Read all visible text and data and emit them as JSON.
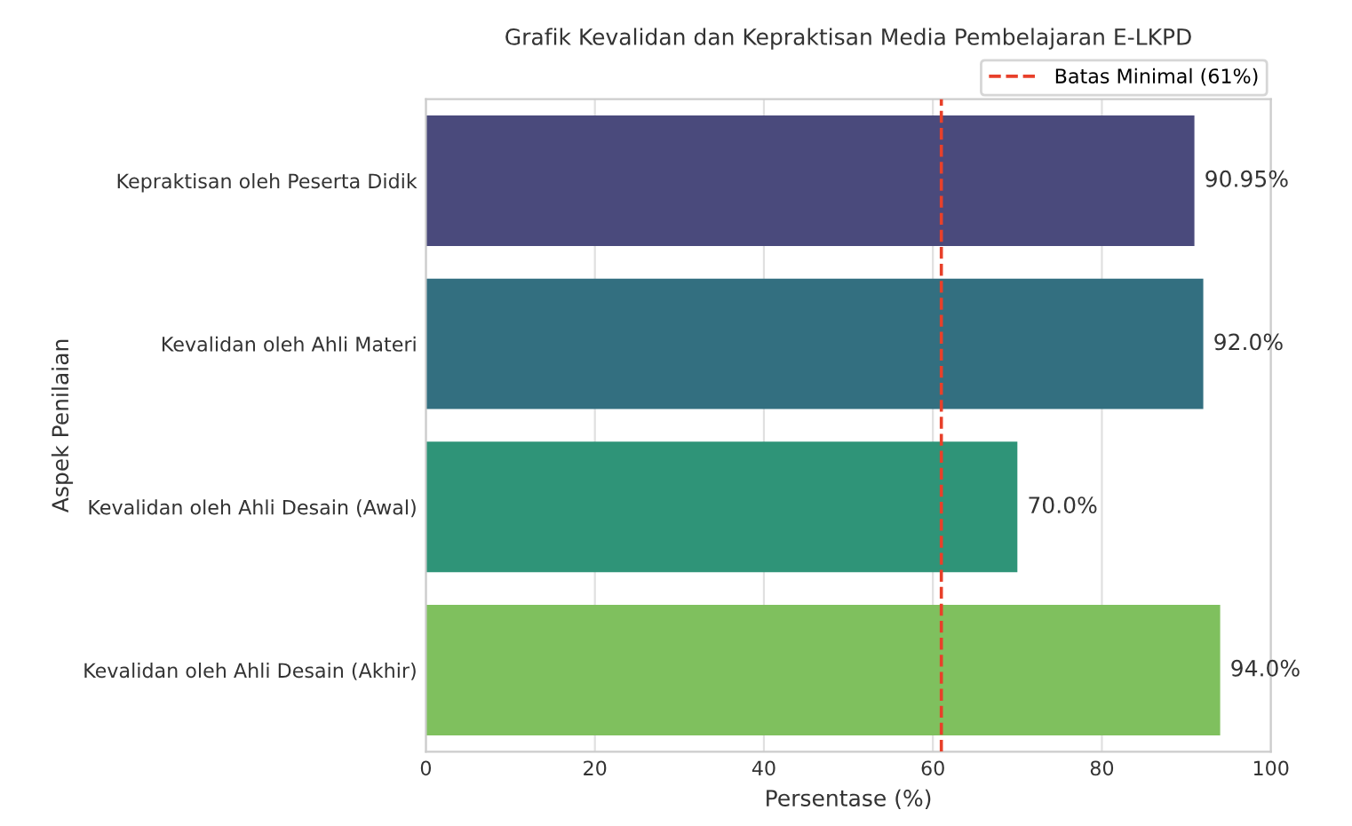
{
  "chart_data": {
    "type": "bar",
    "orientation": "horizontal",
    "title": "Grafik Kevalidan dan Kepraktisan Media Pembelajaran E-LKPD",
    "xlabel": "Persentase (%)",
    "ylabel": "Aspek Penilaian",
    "categories": [
      "Kepraktisan oleh Peserta Didik",
      "Kevalidan oleh Ahli Materi",
      "Kevalidan oleh Ahli Desain (Awal)",
      "Kevalidan oleh Ahli Desain (Akhir)"
    ],
    "values": [
      90.95,
      92.0,
      70.0,
      94.0
    ],
    "colors": [
      "#4a4a7c",
      "#336f80",
      "#2f9478",
      "#7fc05e"
    ],
    "value_labels": [
      "90.95%",
      "92.0%",
      "70.0%",
      "94.0%"
    ],
    "xlim": [
      0,
      100
    ],
    "xticks": [
      0,
      20,
      40,
      60,
      80,
      100
    ],
    "ref_lines": [
      {
        "axis": "x",
        "value": 61,
        "label": "Batas Minimal (61%)",
        "color": "#e8402a",
        "line_style": "dashed"
      }
    ],
    "grid": "x",
    "legend": "top right"
  }
}
